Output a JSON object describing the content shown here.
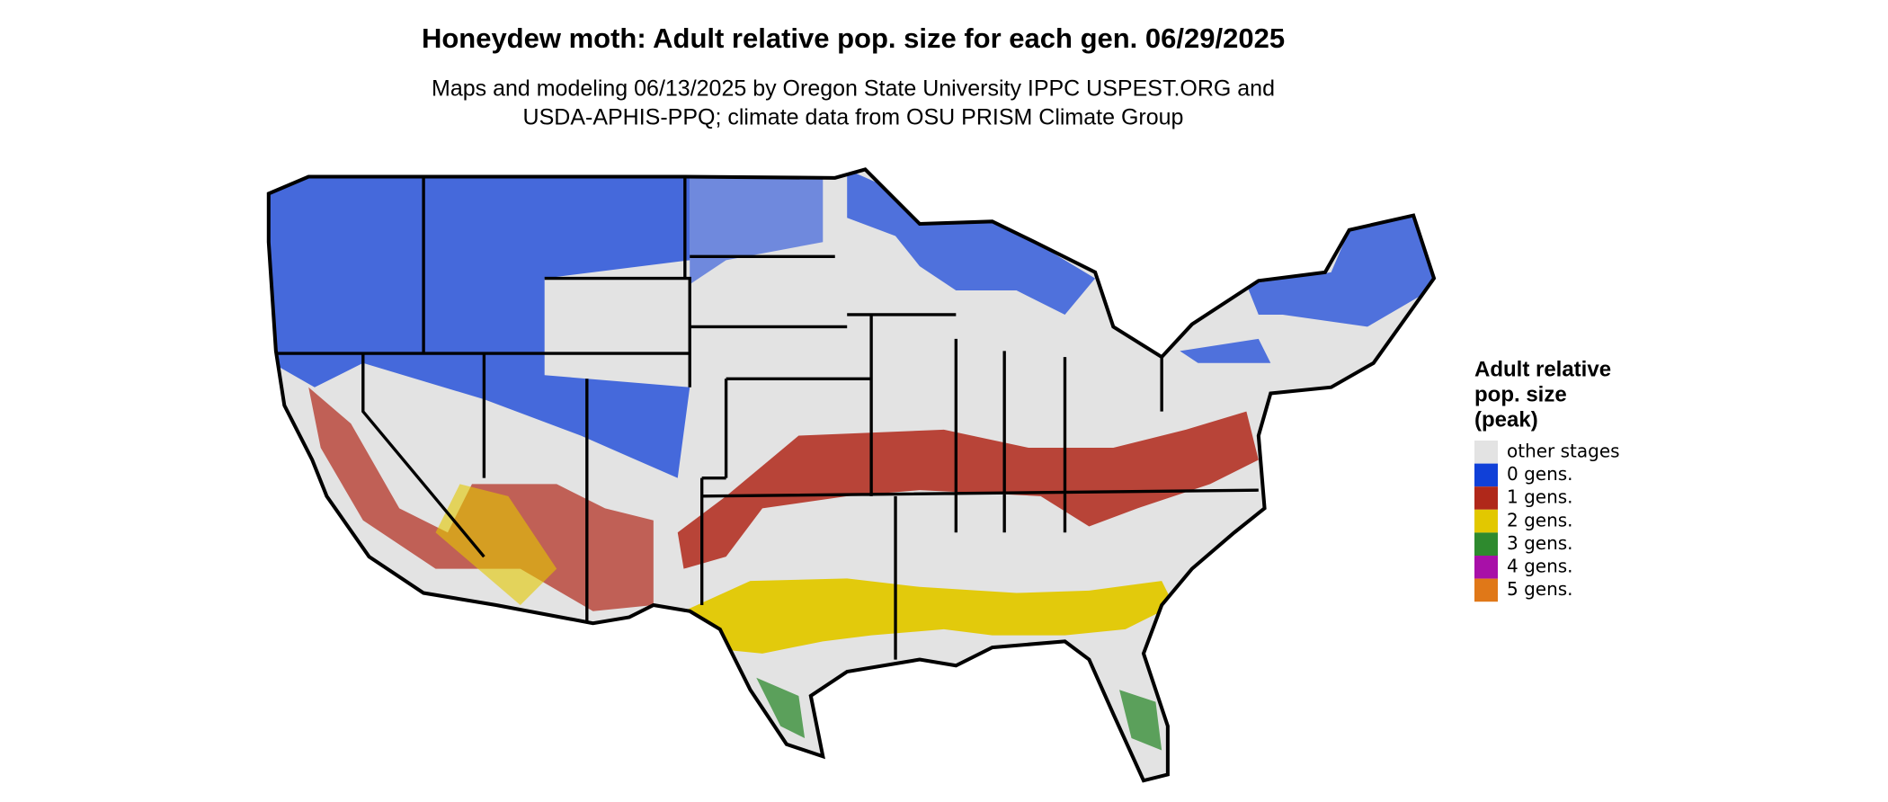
{
  "header": {
    "title": "Honeydew moth: Adult relative pop. size for each gen. 06/29/2025",
    "subtitle_lines": [
      "Maps and modeling 06/13/2025 by Oregon State University IPPC USPEST.ORG and",
      "USDA-APHIS-PPQ; climate data from OSU PRISM Climate Group"
    ]
  },
  "legend": {
    "title_lines": [
      "Adult relative",
      "pop. size",
      "(peak)"
    ],
    "items": [
      {
        "label": "other stages",
        "color": "#e3e3e3"
      },
      {
        "label": "0 gens.",
        "color": "#1040d8"
      },
      {
        "label": "1 gens.",
        "color": "#b0281a"
      },
      {
        "label": "2 gens.",
        "color": "#e2c800"
      },
      {
        "label": "3 gens.",
        "color": "#2e8a2e"
      },
      {
        "label": "4 gens.",
        "color": "#a810a8"
      },
      {
        "label": "5 gens.",
        "color": "#e07818"
      }
    ]
  }
}
